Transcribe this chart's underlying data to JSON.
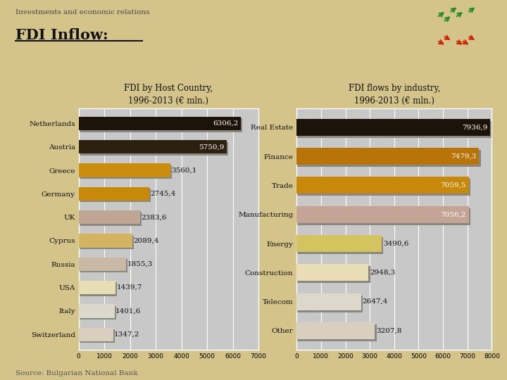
{
  "bg_color": "#d4c48a",
  "panel_bg": "#c8c8c8",
  "title_text": "Investments and economic relations",
  "subtitle_text": "FDI Inflow:",
  "source_text": "Source: Bulgarian National Bank",
  "left_title": "FDI by Host Country,\n1996-2013 (€ mln.)",
  "left_categories": [
    "Switzerland",
    "Italy",
    "USA",
    "Russia",
    "Cyprus",
    "UK",
    "Germany",
    "Greece",
    "Austria",
    "Netherlands"
  ],
  "left_values": [
    1347.2,
    1401.6,
    1439.7,
    1855.3,
    2089.4,
    2383.6,
    2745.4,
    3560.1,
    5750.9,
    6306.2
  ],
  "left_labels": [
    "1347,2",
    "1401,6",
    "1439,7",
    "1855,3",
    "2089,4",
    "2383,6",
    "2745,4",
    "3560,1",
    "5750,9",
    "6306,2"
  ],
  "left_colors": [
    "#d8cfbe",
    "#ddd8cc",
    "#e8ddb4",
    "#c8b8a4",
    "#d4b460",
    "#c0a494",
    "#c8880a",
    "#ca8e0e",
    "#2c2010",
    "#1c1408"
  ],
  "left_xlim": [
    0,
    7000
  ],
  "left_xticks": [
    0,
    1000,
    2000,
    3000,
    4000,
    5000,
    6000,
    7000
  ],
  "right_title": "FDI flows by industry,\n1996-2013 (€ mln.)",
  "right_categories": [
    "Other",
    "Telecom",
    "Construction",
    "Energy",
    "Manufacturing",
    "Trade",
    "Finance",
    "Real Estate"
  ],
  "right_values": [
    3207.8,
    2647.4,
    2948.3,
    3490.6,
    7056.2,
    7059.5,
    7479.3,
    7936.9
  ],
  "right_labels": [
    "3207,8",
    "2647,4",
    "2948,3",
    "3490,6",
    "7056,2",
    "7059,5",
    "7479,3",
    "7936,9"
  ],
  "right_colors": [
    "#d8cfbe",
    "#ddd8cc",
    "#e8ddb4",
    "#d4c460",
    "#c4a494",
    "#c8880a",
    "#b87408",
    "#1c1408"
  ],
  "right_xlim": [
    0,
    8000
  ],
  "right_xticks": [
    0,
    1000,
    2000,
    3000,
    4000,
    5000,
    6000,
    7000,
    8000
  ]
}
